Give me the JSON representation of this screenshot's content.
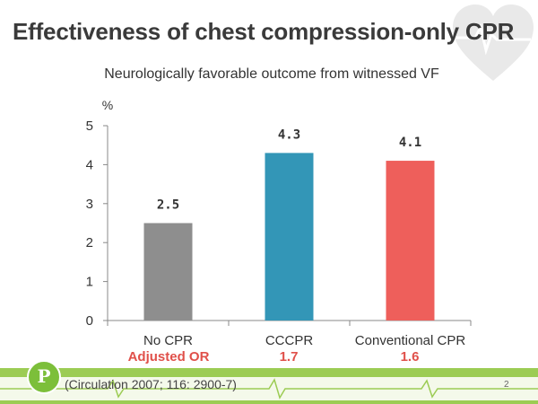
{
  "slide": {
    "title": "Effectiveness of chest compression-only CPR",
    "citation": "(Circulation 2007; 116: 2900-7)",
    "page_number": "2",
    "logo_letter": "P"
  },
  "adjusted_or": {
    "label": "Adjusted OR",
    "values": [
      "1.7",
      "1.6"
    ],
    "color": "#e0504a"
  },
  "colors": {
    "title": "#3a3a3a",
    "accent_green": "#9ccc54"
  },
  "chart_data": {
    "type": "bar",
    "title": "Neurologically favorable outcome from witnessed VF",
    "ylabel": "%",
    "xlabel": "",
    "categories": [
      "No CPR",
      "CCCPR",
      "Conventional CPR"
    ],
    "values": [
      2.5,
      4.3,
      4.1
    ],
    "data_labels": [
      "2.5",
      "4.3",
      "4.1"
    ],
    "bar_colors": [
      "#8e8e8e",
      "#3396b7",
      "#ee5f5b"
    ],
    "ylim": [
      0,
      5
    ],
    "yticks": [
      0,
      1,
      2,
      3,
      4,
      5
    ],
    "grid": false,
    "legend": "none"
  }
}
